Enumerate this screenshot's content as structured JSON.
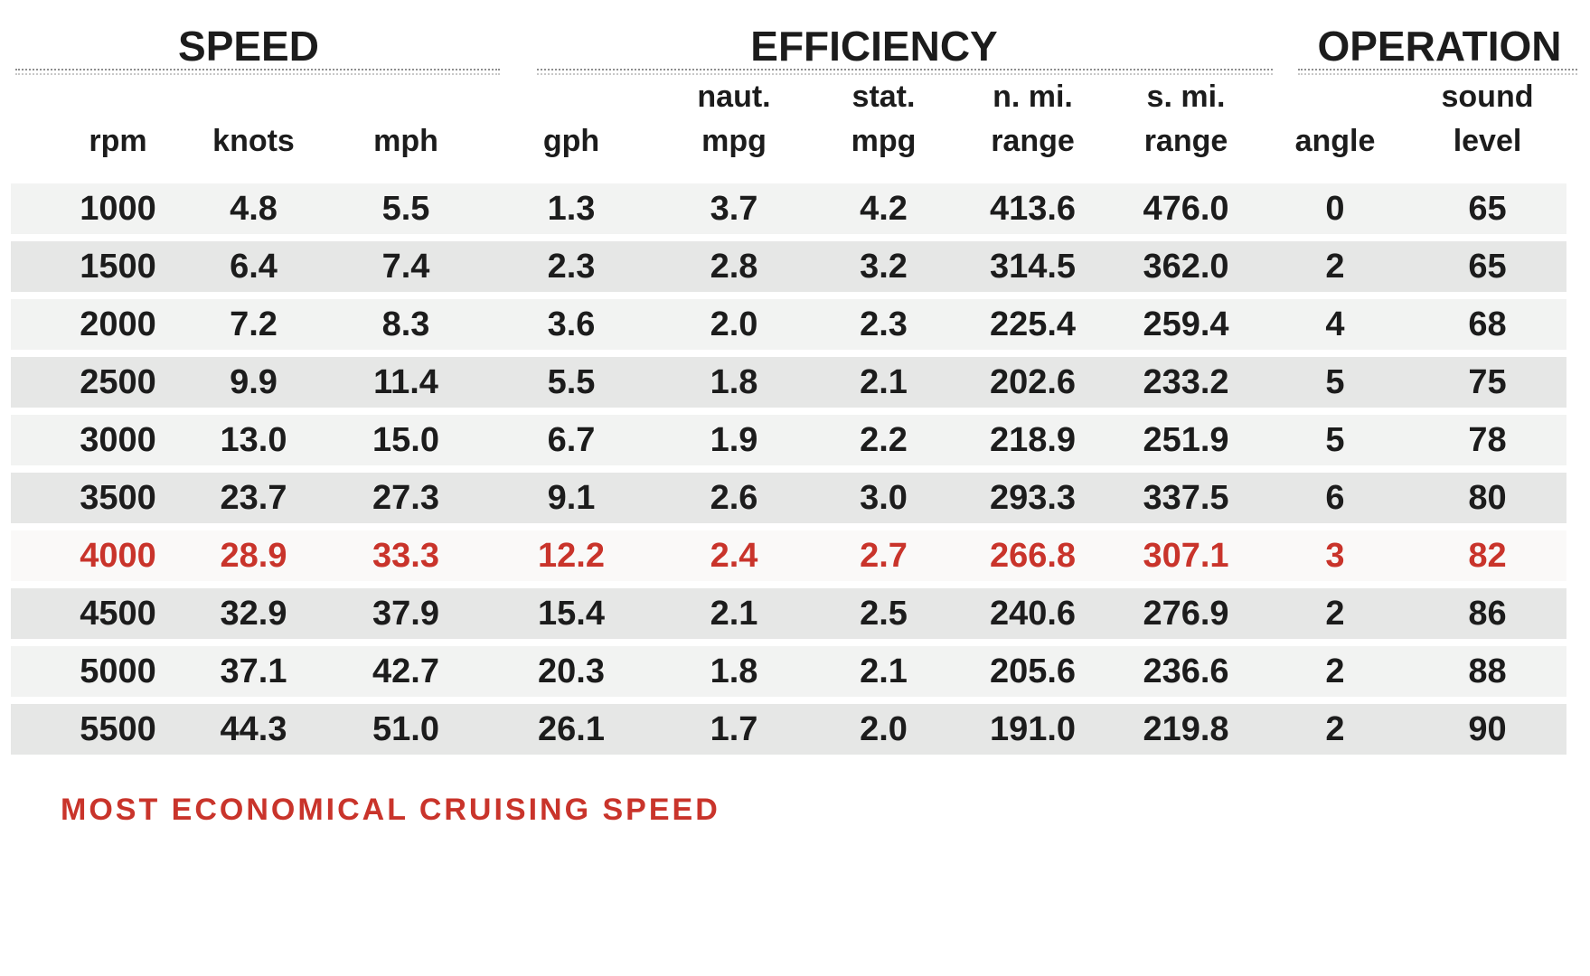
{
  "chart_data": {
    "type": "table",
    "sections": [
      {
        "label": "SPEED"
      },
      {
        "label": "EFFICIENCY"
      },
      {
        "label": "OPERATION"
      }
    ],
    "columns": [
      {
        "id": "rpm",
        "top": "",
        "bottom": "rpm"
      },
      {
        "id": "knots",
        "top": "",
        "bottom": "knots"
      },
      {
        "id": "mph",
        "top": "",
        "bottom": "mph"
      },
      {
        "id": "gph",
        "top": "",
        "bottom": "gph"
      },
      {
        "id": "naut-mpg",
        "top": "naut.",
        "bottom": "mpg"
      },
      {
        "id": "stat-mpg",
        "top": "stat.",
        "bottom": "mpg"
      },
      {
        "id": "n-mi-range",
        "top": "n. mi.",
        "bottom": "range"
      },
      {
        "id": "s-mi-range",
        "top": "s. mi.",
        "bottom": "range"
      },
      {
        "id": "angle",
        "top": "",
        "bottom": "angle"
      },
      {
        "id": "sound-level",
        "top": "sound",
        "bottom": "level"
      }
    ],
    "rows": [
      {
        "values": [
          "1000",
          "4.8",
          "5.5",
          "1.3",
          "3.7",
          "4.2",
          "413.6",
          "476.0",
          "0",
          "65"
        ]
      },
      {
        "values": [
          "1500",
          "6.4",
          "7.4",
          "2.3",
          "2.8",
          "3.2",
          "314.5",
          "362.0",
          "2",
          "65"
        ]
      },
      {
        "values": [
          "2000",
          "7.2",
          "8.3",
          "3.6",
          "2.0",
          "2.3",
          "225.4",
          "259.4",
          "4",
          "68"
        ]
      },
      {
        "values": [
          "2500",
          "9.9",
          "11.4",
          "5.5",
          "1.8",
          "2.1",
          "202.6",
          "233.2",
          "5",
          "75"
        ]
      },
      {
        "values": [
          "3000",
          "13.0",
          "15.0",
          "6.7",
          "1.9",
          "2.2",
          "218.9",
          "251.9",
          "5",
          "78"
        ]
      },
      {
        "values": [
          "3500",
          "23.7",
          "27.3",
          "9.1",
          "2.6",
          "3.0",
          "293.3",
          "337.5",
          "6",
          "80"
        ]
      },
      {
        "values": [
          "4000",
          "28.9",
          "33.3",
          "12.2",
          "2.4",
          "2.7",
          "266.8",
          "307.1",
          "3",
          "82"
        ]
      },
      {
        "values": [
          "4500",
          "32.9",
          "37.9",
          "15.4",
          "2.1",
          "2.5",
          "240.6",
          "276.9",
          "2",
          "86"
        ]
      },
      {
        "values": [
          "5000",
          "37.1",
          "42.7",
          "20.3",
          "1.8",
          "2.1",
          "205.6",
          "236.6",
          "2",
          "88"
        ]
      },
      {
        "values": [
          "5500",
          "44.3",
          "51.0",
          "26.1",
          "1.7",
          "2.0",
          "191.0",
          "219.8",
          "2",
          "90"
        ]
      }
    ],
    "highlight_row_index": 6,
    "footnote": "MOST ECONOMICAL CRUISING SPEED"
  },
  "colors": {
    "highlight_red": "#c9342b",
    "row_light": "#f2f3f2",
    "row_dark": "#e6e7e6",
    "highlight_row_bg": "#faf9f8",
    "text": "#1c1c1c"
  }
}
